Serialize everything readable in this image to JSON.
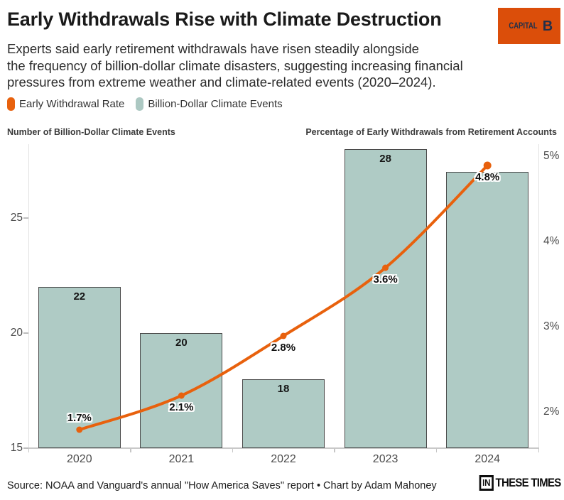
{
  "header": {
    "title": "Early Withdrawals Rise with Climate Destruction",
    "subtitle_lines": [
      "Experts said early retirement withdrawals have risen steadily alongside",
      "the frequency of billion-dollar climate disasters, suggesting increasing financial",
      "pressures from extreme weather and climate-related events (2020–2024)."
    ],
    "logo": {
      "capital": "CAPITAL",
      "b": "B",
      "bg_color": "#DB4E0A",
      "text_color": "#22304A"
    }
  },
  "legend": {
    "items": [
      {
        "label": "Early Withdrawal Rate",
        "color": "#E8610D"
      },
      {
        "label": "Billion-Dollar Climate Events",
        "color": "#ACC8C2"
      }
    ]
  },
  "chart_data": {
    "type": "combo-bar-line",
    "categories": [
      "2020",
      "2021",
      "2022",
      "2023",
      "2024"
    ],
    "series": [
      {
        "name": "Billion-Dollar Climate Events",
        "type": "bar",
        "axis": "left",
        "values": [
          22,
          20,
          18,
          28,
          27
        ],
        "bar_labels": [
          "22",
          "20",
          "18",
          "28",
          ""
        ],
        "fill_color": "#AFCBC5",
        "border_color": "#4A4A4A"
      },
      {
        "name": "Early Withdrawal Rate",
        "type": "line",
        "axis": "right",
        "values": [
          1.7,
          2.1,
          2.8,
          3.6,
          4.8
        ],
        "point_labels": [
          "1.7%",
          "2.1%",
          "2.8%",
          "3.6%",
          "4.8%"
        ],
        "color": "#E8610D"
      }
    ],
    "left_axis": {
      "title": "Number of Billion-Dollar Climate Events",
      "ticks": [
        15,
        20,
        25
      ],
      "range": [
        15,
        28.2
      ]
    },
    "right_axis": {
      "title": "Percentage of Early Withdrawals from Retirement Accounts",
      "ticks": [
        2,
        3,
        4,
        5
      ],
      "tick_labels": [
        "2%",
        "3%",
        "4%",
        "5%"
      ],
      "range": [
        1.5,
        5.05
      ]
    },
    "grid": false,
    "legend_position": "top-left"
  },
  "footer": {
    "source": "Source: NOAA and Vanguard's annual \"How America Saves\" report • Chart by Adam Mahoney",
    "logo": {
      "in": "IN",
      "rest": "THESE TIMES"
    }
  }
}
